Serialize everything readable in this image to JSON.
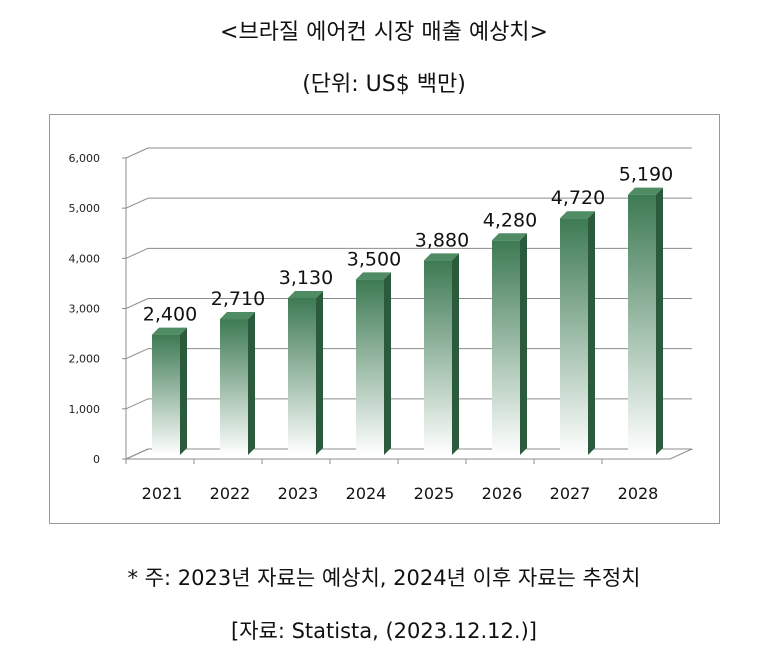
{
  "header": {
    "title": "<브라질 에어컨 시장 매출 예상치>",
    "subtitle": "(단위: US$ 백만)"
  },
  "footer": {
    "note": "* 주: 2023년 자료는 예상치, 2024년 이후 자료는 추정치",
    "source": "[자료: Statista, (2023.12.12.)]"
  },
  "colors": {
    "bar_top": "#3d7a53",
    "bar_bottom": "#ffffff",
    "bar_side": "#2b5a3c",
    "bar_cap": "#4f8c63",
    "grid": "#8c8c8c"
  },
  "chart_data": {
    "type": "bar",
    "title": "<브라질 에어컨 시장 매출 예상치>",
    "ylabel": "",
    "xlabel": "",
    "categories": [
      "2021",
      "2022",
      "2023",
      "2024",
      "2025",
      "2026",
      "2027",
      "2028"
    ],
    "values": [
      2400,
      2710,
      3130,
      3500,
      3880,
      4280,
      4720,
      5190
    ],
    "value_labels": [
      "2,400",
      "2,710",
      "3,130",
      "3,500",
      "3,880",
      "4,280",
      "4,720",
      "5,190"
    ],
    "yticks": [
      0,
      1000,
      2000,
      3000,
      4000,
      5000,
      6000
    ],
    "ytick_labels": [
      "0",
      "1,000",
      "2,000",
      "3,000",
      "4,000",
      "5,000",
      "6,000"
    ],
    "ylim": [
      0,
      6000
    ],
    "grid": true,
    "legend": "none"
  }
}
